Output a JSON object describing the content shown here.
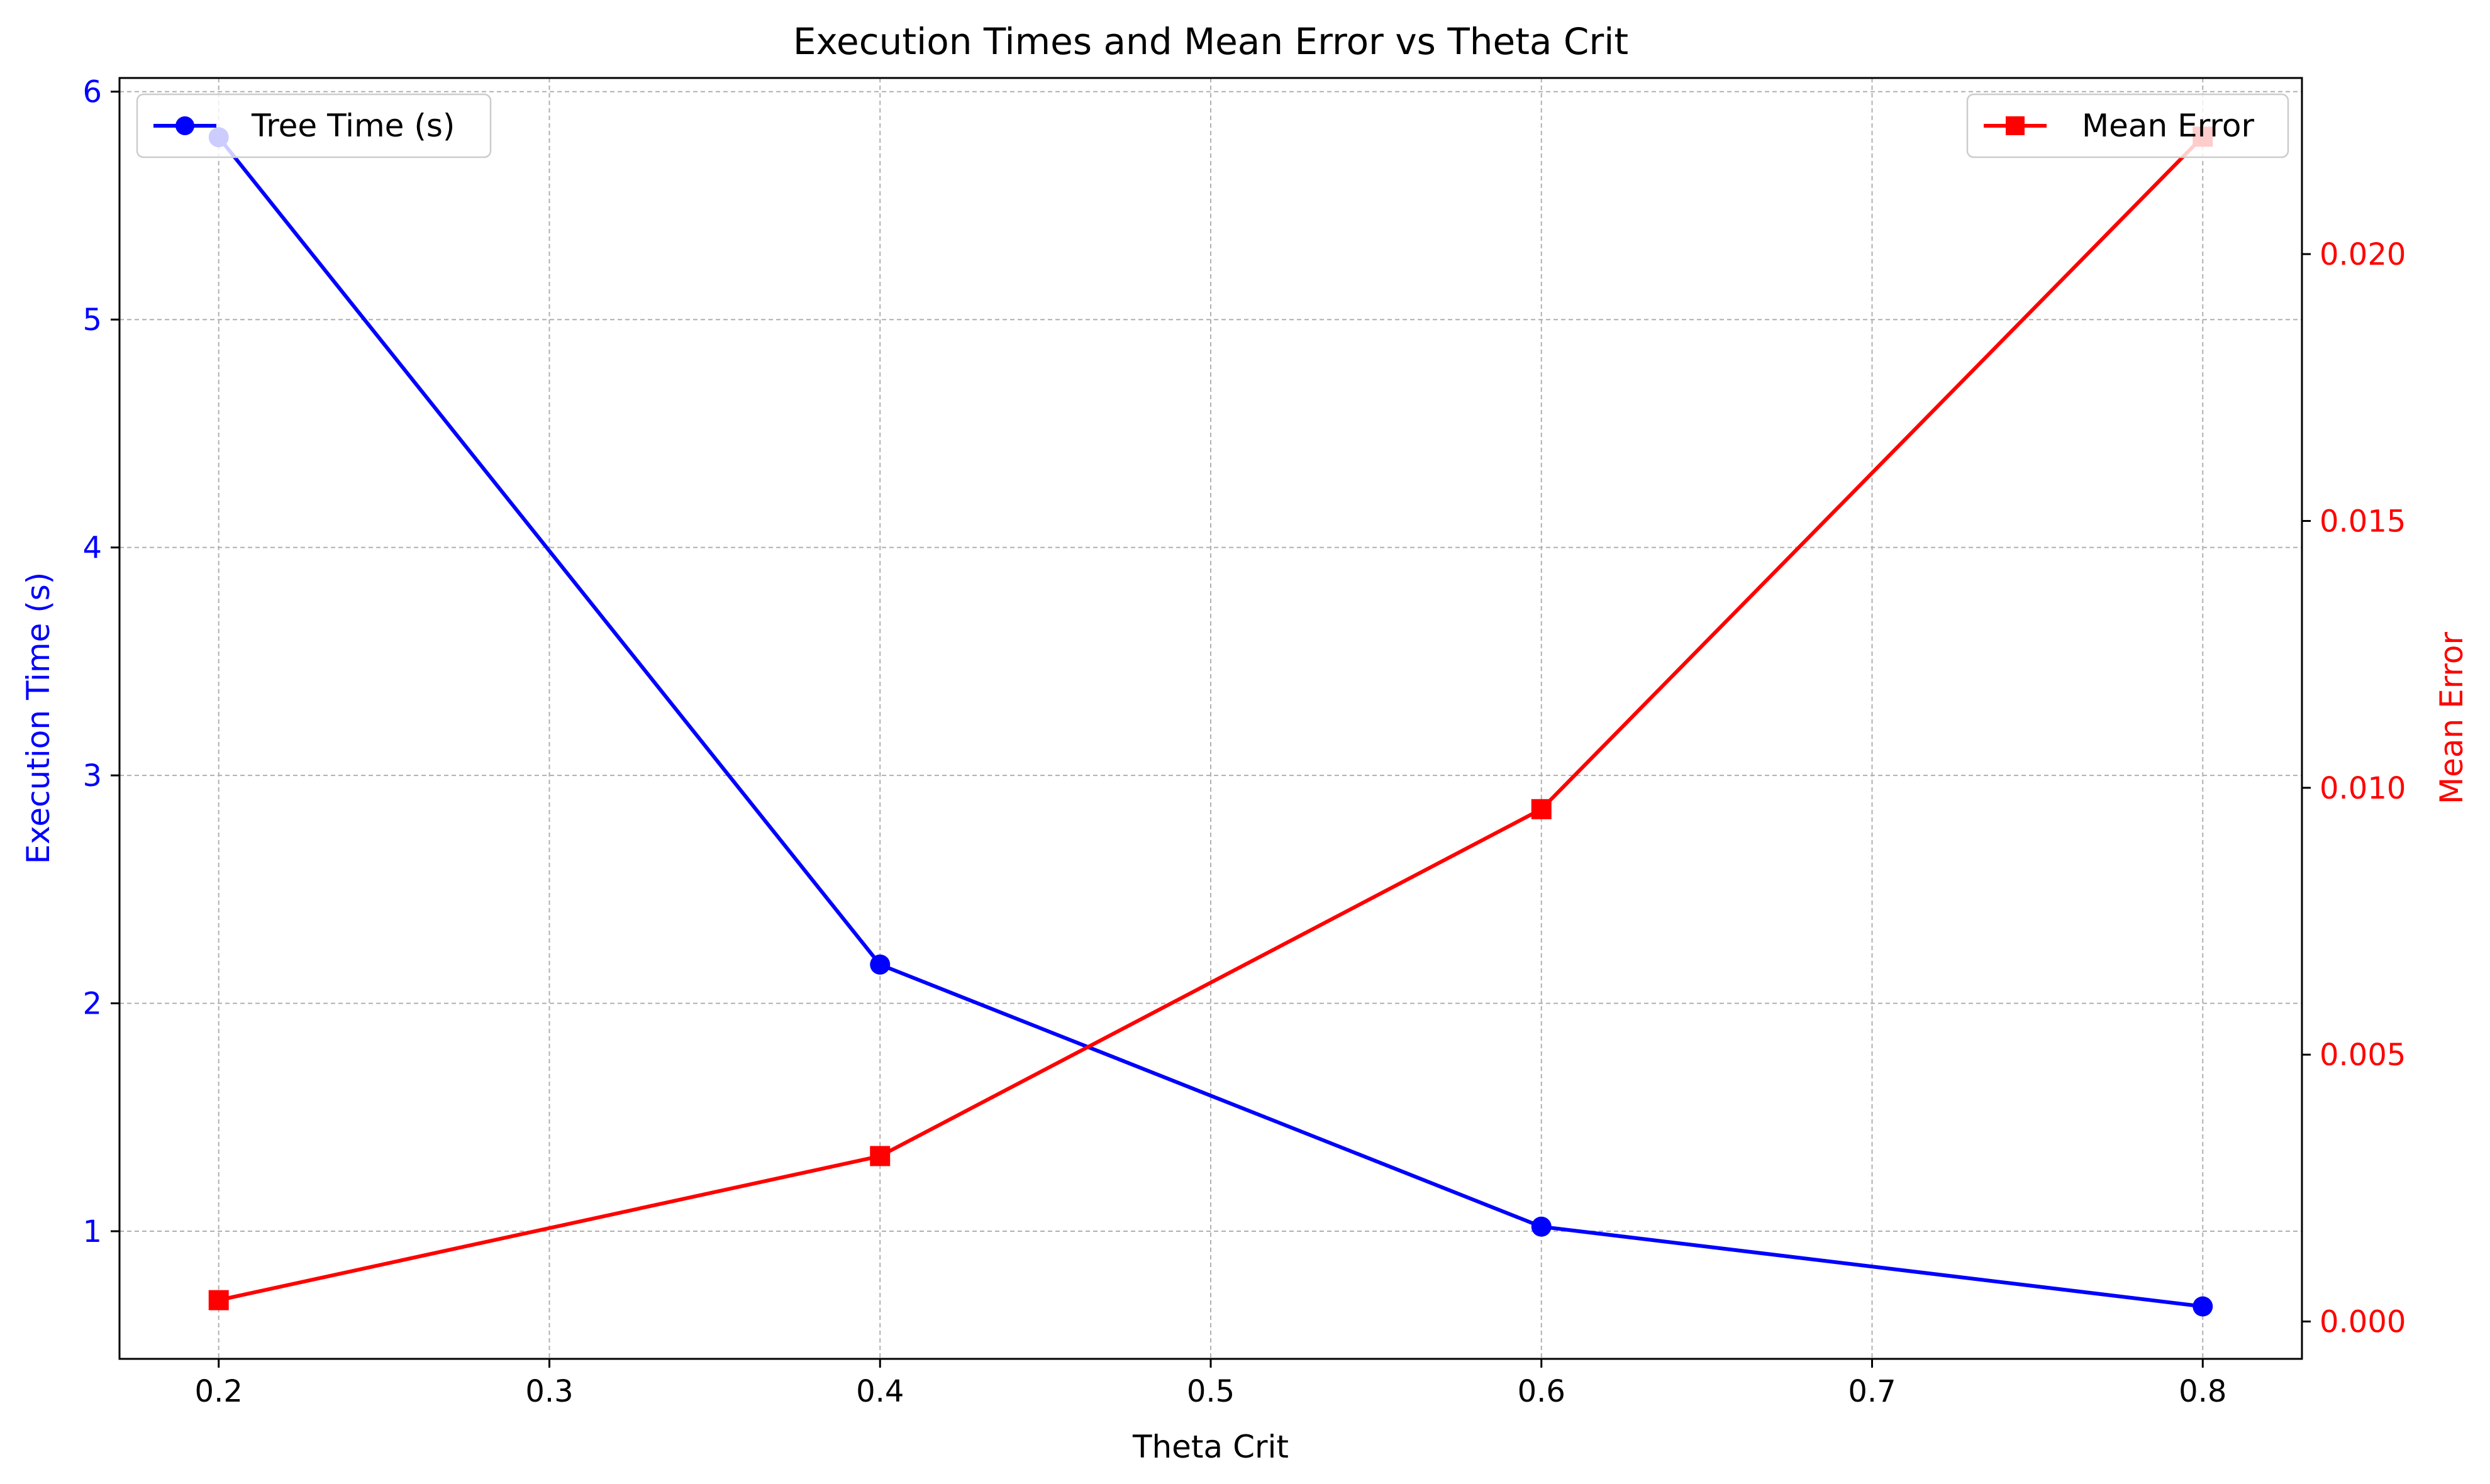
{
  "chart_data": {
    "type": "line",
    "title": "Execution Times and Mean Error vs Theta Crit",
    "xlabel": "Theta Crit",
    "ylabel_left": "Execution Time (s)",
    "ylabel_right": "Mean Error",
    "x": [
      0.2,
      0.4,
      0.6,
      0.8
    ],
    "xlim": [
      0.17,
      0.83
    ],
    "xticks": [
      0.2,
      0.3,
      0.4,
      0.5,
      0.6,
      0.7,
      0.8
    ],
    "xtick_labels": [
      "0.2",
      "0.3",
      "0.4",
      "0.5",
      "0.6",
      "0.7",
      "0.8"
    ],
    "ylim_left": [
      0.44,
      6.06
    ],
    "yticks_left": [
      1,
      2,
      3,
      4,
      5,
      6
    ],
    "ytick_labels_left": [
      "1",
      "2",
      "3",
      "4",
      "5",
      "6"
    ],
    "ylim_right": [
      -0.0007,
      0.0233
    ],
    "yticks_right": [
      0.0,
      0.005,
      0.01,
      0.015,
      0.02
    ],
    "ytick_labels_right": [
      "0.000",
      "0.005",
      "0.010",
      "0.015",
      "0.020"
    ],
    "grid": true,
    "series": [
      {
        "name": "Tree Time (s)",
        "axis": "left",
        "color": "#0000ff",
        "marker": "circle",
        "values": [
          5.8,
          2.17,
          1.02,
          0.67
        ],
        "legend_position": "top-left"
      },
      {
        "name": "Mean Error",
        "axis": "right",
        "color": "#ff0000",
        "marker": "square",
        "values": [
          0.0004,
          0.0031,
          0.0096,
          0.0222
        ],
        "legend_position": "top-right"
      }
    ]
  }
}
